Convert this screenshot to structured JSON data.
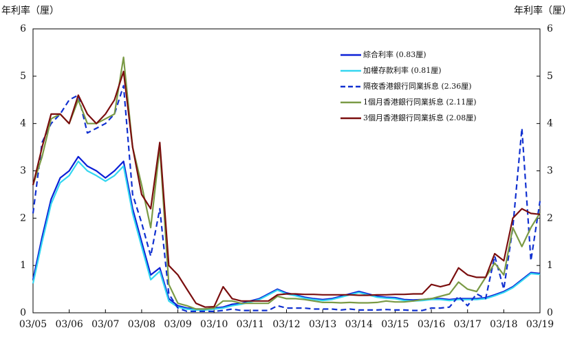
{
  "chart_data": {
    "type": "line",
    "y_label": "年利率（厘）",
    "y2_label": "年利率（厘）",
    "x": [
      "2005-03",
      "2005-06",
      "2005-09",
      "2005-12",
      "2006-03",
      "2006-06",
      "2006-09",
      "2006-12",
      "2007-03",
      "2007-06",
      "2007-09",
      "2007-12",
      "2008-03",
      "2008-06",
      "2008-09",
      "2008-12",
      "2009-03",
      "2009-06",
      "2009-09",
      "2009-12",
      "2010-03",
      "2010-06",
      "2010-09",
      "2010-12",
      "2011-03",
      "2011-06",
      "2011-09",
      "2011-12",
      "2012-03",
      "2012-06",
      "2012-09",
      "2012-12",
      "2013-03",
      "2013-06",
      "2013-09",
      "2013-12",
      "2014-03",
      "2014-06",
      "2014-09",
      "2014-12",
      "2015-03",
      "2015-06",
      "2015-09",
      "2015-12",
      "2016-03",
      "2016-06",
      "2016-09",
      "2016-12",
      "2017-03",
      "2017-06",
      "2017-09",
      "2017-12",
      "2018-03",
      "2018-06",
      "2018-09",
      "2018-12",
      "2019-03"
    ],
    "xticks": [
      {
        "value": "2005-03",
        "label": "03/05"
      },
      {
        "value": "2006-03",
        "label": "03/06"
      },
      {
        "value": "2007-03",
        "label": "03/07"
      },
      {
        "value": "2008-03",
        "label": "03/08"
      },
      {
        "value": "2009-03",
        "label": "03/09"
      },
      {
        "value": "2010-03",
        "label": "03/10"
      },
      {
        "value": "2011-03",
        "label": "03/11"
      },
      {
        "value": "2012-03",
        "label": "03/12"
      },
      {
        "value": "2013-03",
        "label": "03/13"
      },
      {
        "value": "2014-03",
        "label": "03/14"
      },
      {
        "value": "2015-03",
        "label": "03/15"
      },
      {
        "value": "2016-03",
        "label": "03/16"
      },
      {
        "value": "2017-03",
        "label": "03/17"
      },
      {
        "value": "2018-03",
        "label": "03/18"
      },
      {
        "value": "2019-03",
        "label": "03/19"
      }
    ],
    "ylim": [
      0,
      6
    ],
    "yticks": [
      0,
      1,
      2,
      3,
      4,
      5,
      6
    ],
    "series": [
      {
        "name": "綜合利率 (0.83厘)",
        "color": "#0a1fd6",
        "dashed": false,
        "values": [
          0.7,
          1.6,
          2.4,
          2.85,
          3.0,
          3.3,
          3.1,
          3.0,
          2.85,
          3.0,
          3.2,
          2.2,
          1.5,
          0.8,
          0.95,
          0.3,
          0.15,
          0.1,
          0.08,
          0.08,
          0.1,
          0.12,
          0.18,
          0.2,
          0.25,
          0.3,
          0.4,
          0.5,
          0.42,
          0.38,
          0.33,
          0.3,
          0.28,
          0.3,
          0.35,
          0.4,
          0.45,
          0.4,
          0.35,
          0.33,
          0.32,
          0.28,
          0.27,
          0.28,
          0.3,
          0.3,
          0.28,
          0.3,
          0.3,
          0.3,
          0.32,
          0.38,
          0.45,
          0.55,
          0.7,
          0.85,
          0.83
        ]
      },
      {
        "name": "加權存款利率 (0.81厘)",
        "color": "#33d6f0",
        "dashed": false,
        "values": [
          0.62,
          1.5,
          2.3,
          2.75,
          2.9,
          3.2,
          3.0,
          2.9,
          2.78,
          2.9,
          3.1,
          2.1,
          1.4,
          0.7,
          0.88,
          0.25,
          0.12,
          0.08,
          0.06,
          0.06,
          0.08,
          0.1,
          0.15,
          0.18,
          0.23,
          0.28,
          0.38,
          0.48,
          0.4,
          0.36,
          0.31,
          0.28,
          0.26,
          0.28,
          0.33,
          0.38,
          0.43,
          0.38,
          0.33,
          0.31,
          0.3,
          0.26,
          0.25,
          0.26,
          0.28,
          0.28,
          0.26,
          0.28,
          0.28,
          0.28,
          0.3,
          0.36,
          0.43,
          0.53,
          0.68,
          0.83,
          0.81
        ]
      },
      {
        "name": "隔夜香港銀行同業拆息 (2.36厘)",
        "color": "#1030d0",
        "dashed": true,
        "values": [
          2.1,
          3.6,
          4.0,
          4.2,
          4.5,
          4.6,
          3.8,
          3.9,
          4.0,
          4.2,
          4.8,
          2.5,
          1.9,
          1.2,
          2.2,
          0.4,
          0.1,
          0.03,
          0.03,
          0.03,
          0.03,
          0.05,
          0.08,
          0.05,
          0.05,
          0.05,
          0.05,
          0.15,
          0.1,
          0.1,
          0.1,
          0.08,
          0.08,
          0.08,
          0.06,
          0.08,
          0.06,
          0.06,
          0.06,
          0.07,
          0.06,
          0.06,
          0.05,
          0.05,
          0.1,
          0.1,
          0.12,
          0.35,
          0.15,
          0.4,
          0.3,
          1.2,
          0.5,
          1.8,
          3.9,
          1.1,
          2.36
        ]
      },
      {
        "name": "1個月香港銀行同業拆息 (2.11厘)",
        "color": "#7a9a45",
        "dashed": false,
        "values": [
          2.7,
          3.3,
          4.1,
          4.2,
          4.0,
          4.5,
          4.0,
          4.0,
          4.1,
          4.2,
          5.4,
          3.5,
          2.7,
          1.8,
          3.5,
          0.6,
          0.2,
          0.15,
          0.08,
          0.08,
          0.1,
          0.25,
          0.25,
          0.2,
          0.2,
          0.2,
          0.2,
          0.35,
          0.3,
          0.3,
          0.28,
          0.25,
          0.22,
          0.22,
          0.21,
          0.22,
          0.21,
          0.21,
          0.22,
          0.25,
          0.23,
          0.23,
          0.25,
          0.28,
          0.3,
          0.35,
          0.4,
          0.65,
          0.5,
          0.45,
          0.75,
          1.05,
          0.8,
          1.8,
          1.4,
          1.8,
          2.11
        ]
      },
      {
        "name": "3個月香港銀行同業拆息 (2.08厘)",
        "color": "#7a0e0e",
        "dashed": false,
        "values": [
          2.7,
          3.5,
          4.2,
          4.2,
          4.0,
          4.6,
          4.2,
          4.0,
          4.2,
          4.5,
          5.1,
          3.5,
          2.5,
          2.2,
          3.6,
          1.0,
          0.8,
          0.5,
          0.2,
          0.12,
          0.13,
          0.55,
          0.3,
          0.25,
          0.25,
          0.25,
          0.25,
          0.38,
          0.4,
          0.4,
          0.39,
          0.39,
          0.38,
          0.38,
          0.38,
          0.38,
          0.37,
          0.37,
          0.38,
          0.38,
          0.39,
          0.39,
          0.4,
          0.4,
          0.6,
          0.55,
          0.6,
          0.95,
          0.8,
          0.75,
          0.75,
          1.25,
          1.1,
          2.0,
          2.2,
          2.1,
          2.08
        ]
      }
    ]
  }
}
